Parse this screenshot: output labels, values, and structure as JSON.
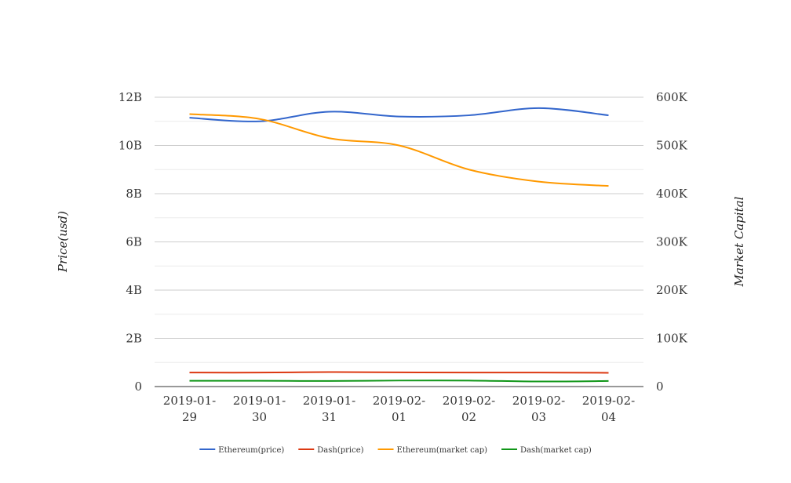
{
  "chart_data": {
    "type": "line",
    "categories": [
      "2019-01-29",
      "2019-01-30",
      "2019-01-31",
      "2019-02-01",
      "2019-02-02",
      "2019-02-03",
      "2019-02-04"
    ],
    "y_left": {
      "label": "Price(usd)",
      "range": [
        0,
        12000000000
      ],
      "ticks": [
        "0",
        "2B",
        "4B",
        "6B",
        "8B",
        "10B",
        "12B"
      ]
    },
    "y_right": {
      "label": "Market Capital",
      "range": [
        0,
        600000
      ],
      "ticks": [
        "0",
        "100K",
        "200K",
        "300K",
        "400K",
        "500K",
        "600K"
      ]
    },
    "grid": true,
    "legend_position": "bottom",
    "series": [
      {
        "name": "Ethereum(price)",
        "color": "#3366cc",
        "axis": "left",
        "values": [
          11150000000,
          11000000000,
          11400000000,
          11200000000,
          11250000000,
          11550000000,
          11250000000
        ]
      },
      {
        "name": "Dash(price)",
        "color": "#dc3912",
        "axis": "left",
        "values": [
          580000000,
          580000000,
          600000000,
          590000000,
          580000000,
          580000000,
          570000000
        ]
      },
      {
        "name": "Ethereum(market cap)",
        "color": "#ff9900",
        "axis": "right",
        "values": [
          565000,
          555000,
          515000,
          500000,
          450000,
          425000,
          416000
        ]
      },
      {
        "name": "Dash(market cap)",
        "color": "#109618",
        "axis": "right",
        "values": [
          12000,
          12000,
          11500,
          12500,
          12500,
          10500,
          11500
        ]
      }
    ]
  }
}
